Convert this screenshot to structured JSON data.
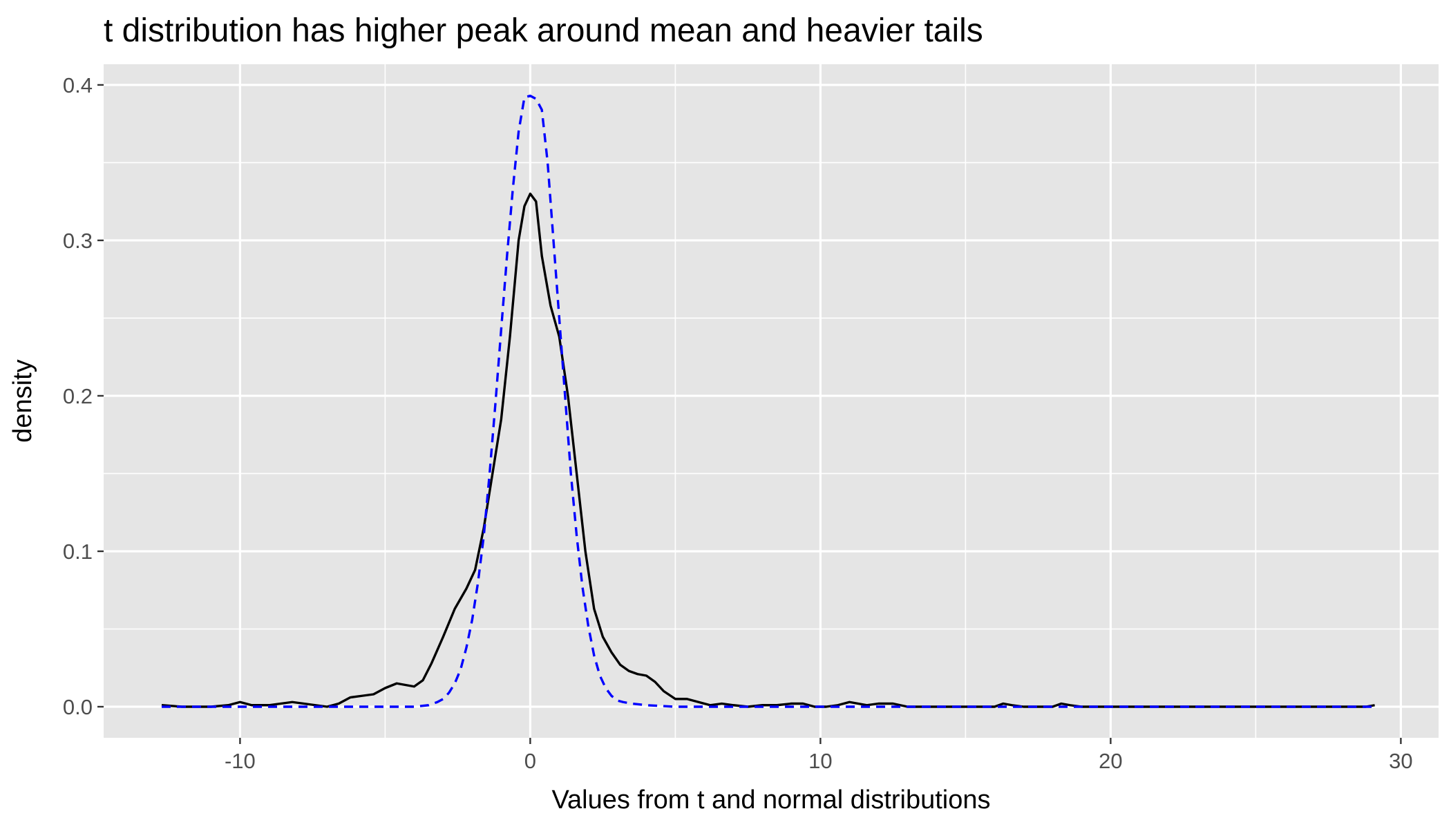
{
  "chart_data": {
    "type": "line",
    "title": "t distribution has higher peak around mean and heavier tails",
    "xlabel": "Values from t and normal distributions",
    "ylabel": "density",
    "xlim": [
      -14.7,
      31.3
    ],
    "ylim": [
      -0.02,
      0.4133
    ],
    "x_ticks": [
      -10,
      0,
      10,
      20,
      30
    ],
    "x_tick_labels": [
      "-10",
      "0",
      "10",
      "20",
      "30"
    ],
    "y_ticks": [
      0.0,
      0.1,
      0.2,
      0.3,
      0.4
    ],
    "y_tick_labels": [
      "0.0",
      "0.1",
      "0.2",
      "0.3",
      "0.4"
    ],
    "x_minor_breaks": [
      -5,
      5,
      15,
      25
    ],
    "y_minor_breaks": [
      0.05,
      0.15,
      0.25,
      0.35
    ],
    "grid": true,
    "background": "#e5e5e5",
    "grid_color": "#ffffff",
    "legend": "none",
    "series": [
      {
        "color": "#000000",
        "line_style": "solid",
        "x": [
          -12.7,
          -12.0,
          -11.0,
          -10.4,
          -10.0,
          -9.6,
          -9.0,
          -8.6,
          -8.2,
          -7.8,
          -7.4,
          -7.0,
          -6.6,
          -6.2,
          -5.8,
          -5.4,
          -5.0,
          -4.6,
          -4.3,
          -4.0,
          -3.7,
          -3.4,
          -3.0,
          -2.6,
          -2.2,
          -1.9,
          -1.6,
          -1.3,
          -1.0,
          -0.7,
          -0.4,
          -0.2,
          0.0,
          0.2,
          0.4,
          0.7,
          1.0,
          1.3,
          1.6,
          1.9,
          2.2,
          2.5,
          2.8,
          3.1,
          3.4,
          3.7,
          4.0,
          4.3,
          4.6,
          5.0,
          5.4,
          5.8,
          6.2,
          6.6,
          7.0,
          7.5,
          8.0,
          8.5,
          9.0,
          9.4,
          9.8,
          10.2,
          10.6,
          11.0,
          11.3,
          11.6,
          12.0,
          12.5,
          13.0,
          13.5,
          14.0,
          15.0,
          16.0,
          16.3,
          16.6,
          17.0,
          18.0,
          18.3,
          18.6,
          19.0,
          20.0,
          22.0,
          24.0,
          26.0,
          28.0,
          28.8,
          29.1
        ],
        "y": [
          0.001,
          0.0,
          0.0,
          0.001,
          0.003,
          0.001,
          0.001,
          0.002,
          0.003,
          0.002,
          0.001,
          0.0,
          0.002,
          0.006,
          0.007,
          0.008,
          0.012,
          0.015,
          0.014,
          0.013,
          0.017,
          0.028,
          0.045,
          0.063,
          0.076,
          0.088,
          0.115,
          0.15,
          0.185,
          0.238,
          0.3,
          0.322,
          0.33,
          0.325,
          0.29,
          0.258,
          0.238,
          0.2,
          0.15,
          0.1,
          0.063,
          0.045,
          0.035,
          0.027,
          0.023,
          0.021,
          0.02,
          0.016,
          0.01,
          0.005,
          0.005,
          0.003,
          0.001,
          0.002,
          0.001,
          0.0,
          0.001,
          0.001,
          0.002,
          0.002,
          0.0,
          0.0,
          0.001,
          0.003,
          0.002,
          0.001,
          0.002,
          0.002,
          0.0,
          0.0,
          0.0,
          0.0,
          0.0,
          0.002,
          0.001,
          0.0,
          0.0,
          0.002,
          0.001,
          0.0,
          0.0,
          0.0,
          0.0,
          0.0,
          0.0,
          0.0,
          0.001
        ]
      },
      {
        "color": "#0000ff",
        "line_style": "dashed",
        "x": [
          -12.7,
          -5.0,
          -4.0,
          -3.5,
          -3.2,
          -3.0,
          -2.8,
          -2.6,
          -2.4,
          -2.2,
          -2.0,
          -1.8,
          -1.6,
          -1.4,
          -1.2,
          -1.0,
          -0.8,
          -0.6,
          -0.4,
          -0.2,
          0.0,
          0.2,
          0.4,
          0.6,
          0.8,
          1.0,
          1.2,
          1.4,
          1.6,
          1.8,
          2.0,
          2.2,
          2.4,
          2.6,
          2.8,
          3.0,
          3.2,
          3.5,
          4.0,
          5.0,
          29.1
        ],
        "y": [
          0.0,
          0.0,
          0.0,
          0.001,
          0.003,
          0.005,
          0.009,
          0.015,
          0.024,
          0.038,
          0.056,
          0.08,
          0.11,
          0.15,
          0.195,
          0.243,
          0.29,
          0.333,
          0.37,
          0.392,
          0.393,
          0.391,
          0.384,
          0.35,
          0.3,
          0.25,
          0.2,
          0.15,
          0.11,
          0.077,
          0.052,
          0.033,
          0.02,
          0.012,
          0.007,
          0.004,
          0.003,
          0.002,
          0.001,
          0.0,
          0.0
        ]
      }
    ]
  }
}
